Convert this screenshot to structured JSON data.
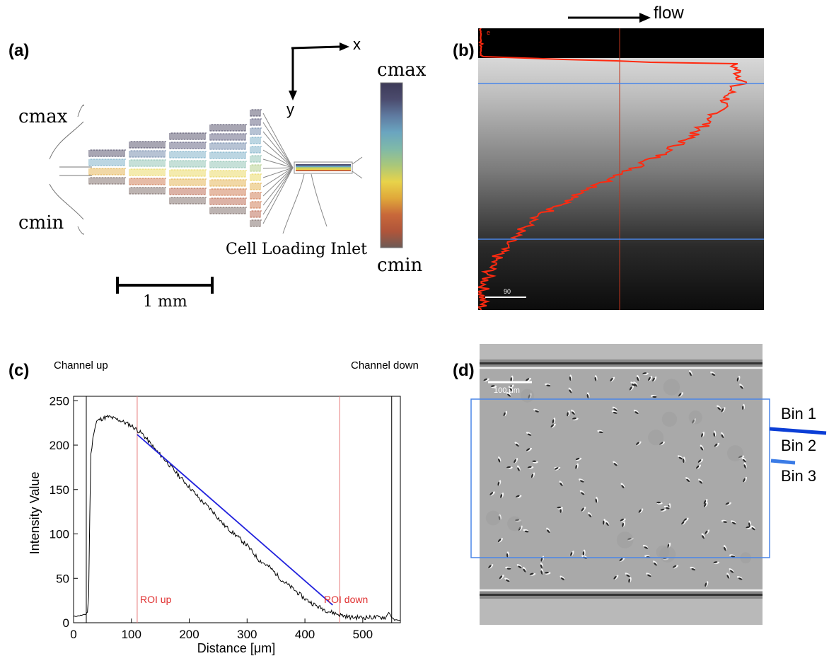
{
  "panel_a": {
    "label": "(a)",
    "c_max_left": "c",
    "c_max_left_sub": "max",
    "c_min_left": "c",
    "c_min_left_sub": "min",
    "axis_x": "x",
    "axis_y": "y",
    "inlet_label": "Cell Loading Inlet",
    "scale_label": "1 mm",
    "colorbar_top": "c",
    "colorbar_top_sub": "max",
    "colorbar_bottom": "c",
    "colorbar_bottom_sub": "min",
    "colorbar_colors": [
      "#3d3a57",
      "#4b4b6e",
      "#5f7aa0",
      "#6aa5c0",
      "#7fb9a8",
      "#a9c77a",
      "#e8d34a",
      "#e0a83a",
      "#c8683a",
      "#b0553a",
      "#6d5a55"
    ]
  },
  "panel_b": {
    "label": "(b)",
    "flow_label": "flow",
    "scale_text": "90",
    "top_text": "e",
    "roi_color": "#4a86e8",
    "profile_color": "#ff2a10"
  },
  "panel_c": {
    "label": "(c)",
    "annotations": {
      "channel_up": "Channel up",
      "channel_down": "Channel down",
      "roi_up": "ROI up",
      "roi_down": "ROI down"
    },
    "chart_data": {
      "type": "line",
      "xlabel": "Distance [μm]",
      "ylabel": "Intensity Value",
      "xlim": [
        0,
        565
      ],
      "ylim": [
        0,
        255
      ],
      "xticks": [
        0,
        100,
        200,
        300,
        400,
        500
      ],
      "yticks": [
        0,
        50,
        100,
        150,
        200,
        250
      ],
      "grid": false,
      "series": [
        {
          "color": "#000000",
          "x": [
            0,
            20,
            24,
            26,
            28,
            30,
            35,
            40,
            50,
            60,
            70,
            80,
            100,
            120,
            140,
            160,
            180,
            200,
            220,
            240,
            260,
            280,
            300,
            320,
            340,
            360,
            380,
            400,
            420,
            440,
            460,
            480,
            500,
            520,
            540,
            545,
            550,
            555,
            560,
            565
          ],
          "y": [
            7,
            9,
            12,
            30,
            120,
            190,
            215,
            227,
            230,
            232,
            230,
            228,
            222,
            212,
            196,
            182,
            167,
            153,
            138,
            126,
            110,
            99,
            87,
            71,
            62,
            48,
            38,
            27,
            19,
            13,
            9,
            6,
            6,
            6,
            6,
            12,
            6,
            3,
            3,
            3
          ]
        },
        {
          "color": "#2222dd",
          "x": [
            110,
            448
          ],
          "y": [
            212,
            20
          ]
        }
      ],
      "vlines_channel": [
        22,
        550
      ],
      "vlines_roi": [
        110,
        460
      ]
    }
  },
  "panel_d": {
    "label": "(d)",
    "scale_text": "100 μm",
    "bins": [
      {
        "label": "Bin 1",
        "color": "#0b3ed6"
      },
      {
        "label": "Bin 2",
        "color": "#3a7be6"
      },
      {
        "label": "Bin 3",
        "color": "#6aaaf0"
      }
    ],
    "roi_color": "#4a86e8"
  }
}
